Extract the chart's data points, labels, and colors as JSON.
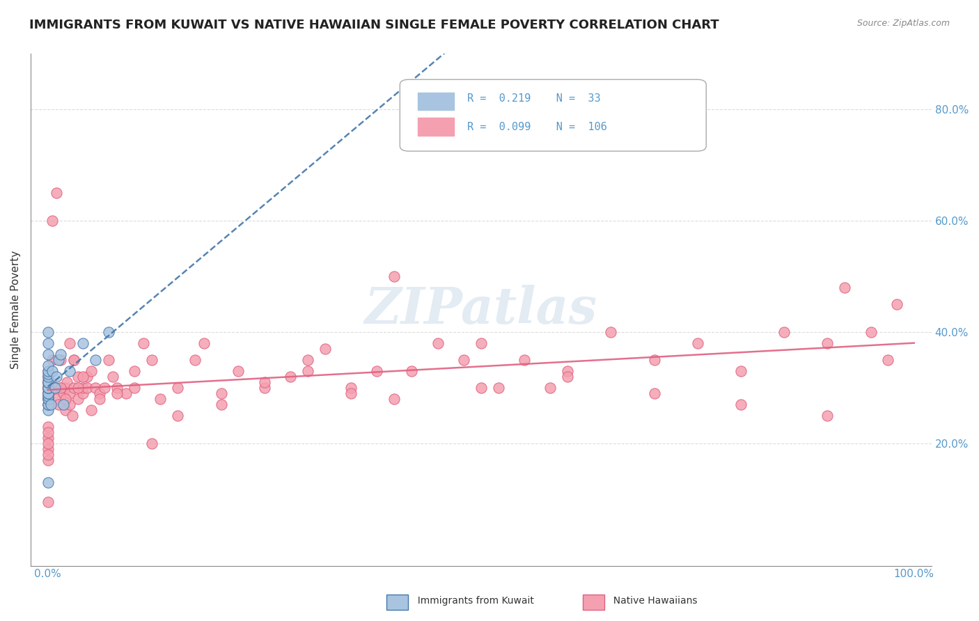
{
  "title": "IMMIGRANTS FROM KUWAIT VS NATIVE HAWAIIAN SINGLE FEMALE POVERTY CORRELATION CHART",
  "source_text": "Source: ZipAtlas.com",
  "ylabel": "Single Female Poverty",
  "xlabel": "",
  "watermark": "ZIPatlas",
  "legend_r1": "R =  0.219",
  "legend_n1": "N =  33",
  "legend_r2": "R =  0.099",
  "legend_n2": "N =  106",
  "x_ticks": [
    0.0,
    0.2,
    0.4,
    0.6,
    0.8,
    1.0
  ],
  "x_tick_labels": [
    "0.0%",
    "",
    "",
    "",
    "",
    "100.0%"
  ],
  "y_ticks": [
    0.0,
    0.2,
    0.4,
    0.6,
    0.8
  ],
  "y_tick_labels": [
    "",
    "20.0%",
    "40.0%",
    "60.0%",
    "80.0%"
  ],
  "blue_color": "#a8c4e0",
  "pink_color": "#f4a0b0",
  "blue_line_color": "#4477aa",
  "pink_line_color": "#e06080",
  "axis_color": "#5599cc",
  "grid_color": "#cccccc",
  "background_color": "#ffffff",
  "blue_scatter_x": [
    0.0,
    0.0,
    0.0,
    0.0,
    0.0,
    0.0,
    0.0,
    0.0,
    0.0,
    0.0,
    0.0,
    0.0,
    0.0,
    0.0,
    0.0,
    0.0,
    0.0,
    0.0,
    0.0,
    0.0,
    0.0,
    0.0,
    0.003,
    0.005,
    0.008,
    0.01,
    0.012,
    0.015,
    0.018,
    0.025,
    0.04,
    0.055,
    0.07
  ],
  "blue_scatter_y": [
    0.26,
    0.27,
    0.27,
    0.28,
    0.28,
    0.285,
    0.29,
    0.29,
    0.3,
    0.3,
    0.3,
    0.31,
    0.31,
    0.31,
    0.32,
    0.325,
    0.33,
    0.34,
    0.36,
    0.38,
    0.4,
    0.13,
    0.27,
    0.33,
    0.3,
    0.32,
    0.35,
    0.36,
    0.27,
    0.33,
    0.38,
    0.35,
    0.4
  ],
  "pink_scatter_x": [
    0.0,
    0.0,
    0.0,
    0.0,
    0.0,
    0.0,
    0.0,
    0.0,
    0.0,
    0.0,
    0.0,
    0.0,
    0.005,
    0.008,
    0.01,
    0.012,
    0.015,
    0.015,
    0.018,
    0.02,
    0.02,
    0.022,
    0.025,
    0.025,
    0.028,
    0.03,
    0.03,
    0.035,
    0.035,
    0.04,
    0.04,
    0.045,
    0.045,
    0.05,
    0.05,
    0.055,
    0.06,
    0.065,
    0.07,
    0.075,
    0.08,
    0.09,
    0.1,
    0.11,
    0.12,
    0.13,
    0.15,
    0.17,
    0.18,
    0.2,
    0.22,
    0.25,
    0.28,
    0.3,
    0.32,
    0.35,
    0.38,
    0.4,
    0.42,
    0.45,
    0.48,
    0.5,
    0.52,
    0.55,
    0.58,
    0.6,
    0.65,
    0.7,
    0.75,
    0.8,
    0.85,
    0.9,
    0.92,
    0.95,
    0.97,
    0.98,
    0.005,
    0.01,
    0.015,
    0.02,
    0.025,
    0.03,
    0.035,
    0.04,
    0.06,
    0.08,
    0.1,
    0.12,
    0.15,
    0.2,
    0.25,
    0.3,
    0.35,
    0.4,
    0.5,
    0.6,
    0.7,
    0.8,
    0.9,
    0.0,
    0.0,
    0.0,
    0.0,
    0.0,
    0.0,
    0.0
  ],
  "pink_scatter_y": [
    0.27,
    0.28,
    0.285,
    0.29,
    0.295,
    0.3,
    0.305,
    0.31,
    0.315,
    0.32,
    0.33,
    0.095,
    0.35,
    0.3,
    0.28,
    0.27,
    0.3,
    0.35,
    0.29,
    0.26,
    0.3,
    0.31,
    0.27,
    0.29,
    0.25,
    0.3,
    0.35,
    0.28,
    0.32,
    0.29,
    0.3,
    0.3,
    0.32,
    0.26,
    0.33,
    0.3,
    0.29,
    0.3,
    0.35,
    0.32,
    0.3,
    0.29,
    0.33,
    0.38,
    0.35,
    0.28,
    0.3,
    0.35,
    0.38,
    0.29,
    0.33,
    0.3,
    0.32,
    0.35,
    0.37,
    0.3,
    0.33,
    0.5,
    0.33,
    0.38,
    0.35,
    0.38,
    0.3,
    0.35,
    0.3,
    0.33,
    0.4,
    0.35,
    0.38,
    0.33,
    0.4,
    0.38,
    0.48,
    0.4,
    0.35,
    0.45,
    0.6,
    0.65,
    0.3,
    0.28,
    0.38,
    0.35,
    0.3,
    0.32,
    0.28,
    0.29,
    0.3,
    0.2,
    0.25,
    0.27,
    0.31,
    0.33,
    0.29,
    0.28,
    0.3,
    0.32,
    0.29,
    0.27,
    0.25,
    0.17,
    0.23,
    0.19,
    0.21,
    0.22,
    0.18,
    0.2
  ]
}
